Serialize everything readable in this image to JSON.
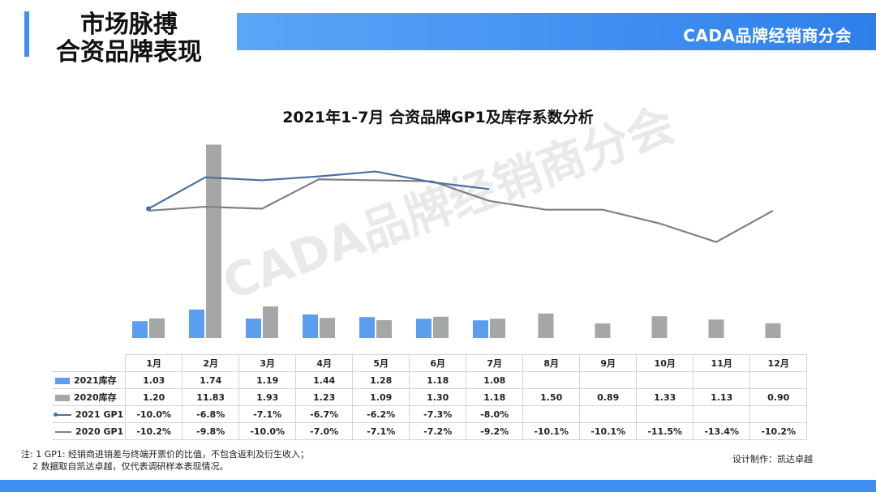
{
  "header": {
    "title_line1": "市场脉搏",
    "title_line2": "合资品牌表现",
    "org": "CADA品牌经销商分会"
  },
  "colors": {
    "accent_blue": "#3d8ff2",
    "inv2021": "#5b9ef0",
    "inv2020": "#a6a6a6",
    "gp2021": "#4a6fa5",
    "gp2020": "#808080"
  },
  "chart_data": {
    "type": "bar",
    "title": "2021年1-7月 合资品牌GP1及库存系数分析",
    "categories": [
      "1月",
      "2月",
      "3月",
      "4月",
      "5月",
      "6月",
      "7月",
      "8月",
      "9月",
      "10月",
      "11月",
      "12月"
    ],
    "bar_ylim": [
      0,
      12
    ],
    "line_ylim": [
      -16,
      -4
    ],
    "grid": false,
    "legend": "table-left",
    "series": [
      {
        "name": "2021库存",
        "kind": "bar",
        "values": [
          1.03,
          1.74,
          1.19,
          1.44,
          1.28,
          1.18,
          1.08,
          null,
          null,
          null,
          null,
          null
        ],
        "labels": [
          "1.03",
          "1.74",
          "1.19",
          "1.44",
          "1.28",
          "1.18",
          "1.08",
          "",
          "",
          "",
          "",
          ""
        ]
      },
      {
        "name": "2020库存",
        "kind": "bar",
        "values": [
          1.2,
          11.83,
          1.93,
          1.23,
          1.09,
          1.3,
          1.18,
          1.5,
          0.89,
          1.33,
          1.13,
          0.9
        ],
        "labels": [
          "1.20",
          "11.83",
          "1.93",
          "1.23",
          "1.09",
          "1.30",
          "1.18",
          "1.50",
          "0.89",
          "1.33",
          "1.13",
          "0.90"
        ]
      },
      {
        "name": "2021 GP1",
        "kind": "line",
        "values": [
          -10.0,
          -6.8,
          -7.1,
          -6.7,
          -6.2,
          -7.3,
          -8.0,
          null,
          null,
          null,
          null,
          null
        ],
        "labels": [
          "-10.0%",
          "-6.8%",
          "-7.1%",
          "-6.7%",
          "-6.2%",
          "-7.3%",
          "-8.0%",
          "",
          "",
          "",
          "",
          ""
        ]
      },
      {
        "name": "2020 GP1",
        "kind": "line",
        "values": [
          -10.2,
          -9.8,
          -10.0,
          -7.0,
          -7.1,
          -7.2,
          -9.2,
          -10.1,
          -10.1,
          -11.5,
          -13.4,
          -10.2
        ],
        "labels": [
          "-10.2%",
          "-9.8%",
          "-10.0%",
          "-7.0%",
          "-7.1%",
          "-7.2%",
          "-9.2%",
          "-10.1%",
          "-10.1%",
          "-11.5%",
          "-13.4%",
          "-10.2%"
        ]
      }
    ]
  },
  "notes": {
    "line1": "注: 1 GP1: 经销商进销差与终端开票价的比值，不包含返利及衍生收入；",
    "line2": "2 数据取自凯达卓越，仅代表调研样本表现情况。"
  },
  "credit": "设计制作：凯达卓越"
}
